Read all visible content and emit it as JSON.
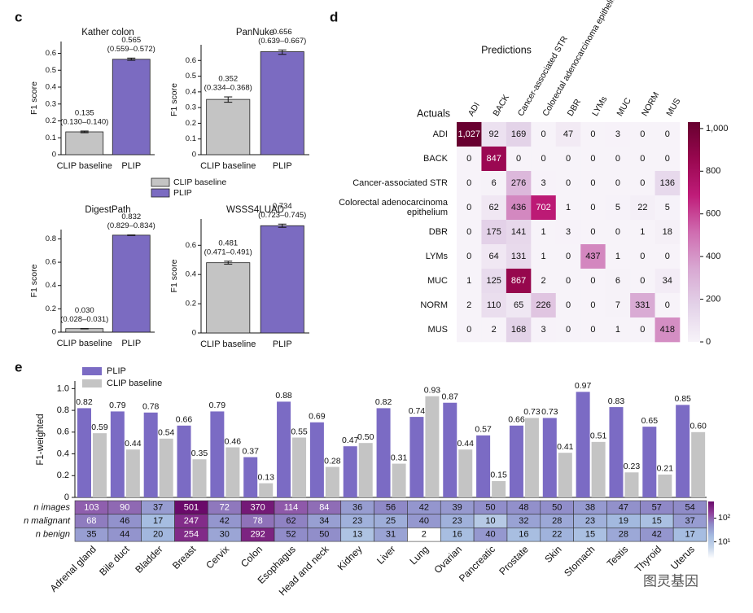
{
  "panel_labels": [
    "c",
    "d",
    "e"
  ],
  "watermark": "图灵基因",
  "chart_data": [
    {
      "type": "bar",
      "title": "Kather colon",
      "ylabel": "F1 score",
      "categories": [
        "CLIP baseline",
        "PLIP"
      ],
      "colors": [
        "#c4c4c4",
        "#7b6bc1"
      ],
      "values": [
        0.135,
        0.565
      ],
      "value_labels": [
        "0.135",
        "0.565"
      ],
      "ci": [
        [
          0.13,
          0.14
        ],
        [
          0.559,
          0.572
        ]
      ],
      "ci_labels": [
        "(0.130–0.140)",
        "(0.559–0.572)"
      ],
      "ylim": [
        0,
        0.67
      ],
      "yticks": [
        0,
        0.1,
        0.2,
        0.3,
        0.4,
        0.5,
        0.6
      ],
      "legend": [
        {
          "name": "CLIP baseline",
          "color": "#c4c4c4"
        },
        {
          "name": "PLIP",
          "color": "#7b6bc1"
        }
      ]
    },
    {
      "type": "bar",
      "title": "PanNuke",
      "ylabel": "F1 score",
      "categories": [
        "CLIP baseline",
        "PLIP"
      ],
      "colors": [
        "#c4c4c4",
        "#7b6bc1"
      ],
      "values": [
        0.352,
        0.656
      ],
      "value_labels": [
        "0.352",
        "0.656"
      ],
      "ci": [
        [
          0.334,
          0.368
        ],
        [
          0.639,
          0.667
        ]
      ],
      "ci_labels": [
        "(0.334–0.368)",
        "(0.639–0.667)"
      ],
      "ylim": [
        0,
        0.7
      ],
      "yticks": [
        0,
        0.1,
        0.2,
        0.3,
        0.4,
        0.5,
        0.6
      ]
    },
    {
      "type": "bar",
      "title": "DigestPath",
      "ylabel": "F1 score",
      "categories": [
        "CLIP baseline",
        "PLIP"
      ],
      "colors": [
        "#c4c4c4",
        "#7b6bc1"
      ],
      "values": [
        0.03,
        0.832
      ],
      "value_labels": [
        "0.030",
        "0.832"
      ],
      "ci": [
        [
          0.028,
          0.031
        ],
        [
          0.829,
          0.834
        ]
      ],
      "ci_labels": [
        "(0.028–0.031)",
        "(0.829–0.834)"
      ],
      "ylim": [
        0,
        0.88
      ],
      "yticks": [
        0,
        0.2,
        0.4,
        0.6,
        0.8
      ]
    },
    {
      "type": "bar",
      "title": "WSSS4LUAD",
      "ylabel": "F1 score",
      "categories": [
        "CLIP baseline",
        "PLIP"
      ],
      "colors": [
        "#c4c4c4",
        "#7b6bc1"
      ],
      "values": [
        0.481,
        0.734
      ],
      "value_labels": [
        "0.481",
        "0.734"
      ],
      "ci": [
        [
          0.471,
          0.491
        ],
        [
          0.723,
          0.745
        ]
      ],
      "ci_labels": [
        "(0.471–0.491)",
        "(0.723–0.745)"
      ],
      "ylim": [
        0,
        0.78
      ],
      "yticks": [
        0,
        0.2,
        0.4,
        0.6
      ]
    },
    {
      "type": "heatmap",
      "xlabel": "Predictions",
      "ylabel": "Actuals",
      "x_categories": [
        "ADI",
        "BACK",
        "Cancer-associated STR",
        "Colorectal adenocarcinoma epithelium",
        "DBR",
        "LYMs",
        "MUC",
        "NORM",
        "MUS"
      ],
      "y_categories": [
        "ADI",
        "BACK",
        "Cancer-associated STR",
        "Colorectal adenocarcinoma epithelium",
        "DBR",
        "LYMs",
        "MUC",
        "NORM",
        "MUS"
      ],
      "values": [
        [
          1027,
          92,
          169,
          0,
          47,
          0,
          3,
          0,
          0
        ],
        [
          0,
          847,
          0,
          0,
          0,
          0,
          0,
          0,
          0
        ],
        [
          0,
          6,
          276,
          3,
          0,
          0,
          0,
          0,
          136
        ],
        [
          0,
          62,
          436,
          702,
          1,
          0,
          5,
          22,
          5
        ],
        [
          0,
          175,
          141,
          1,
          3,
          0,
          0,
          1,
          18
        ],
        [
          0,
          64,
          131,
          1,
          0,
          437,
          1,
          0,
          0
        ],
        [
          1,
          125,
          867,
          2,
          0,
          0,
          6,
          0,
          34
        ],
        [
          2,
          110,
          65,
          226,
          0,
          0,
          7,
          331,
          0
        ],
        [
          0,
          2,
          168,
          3,
          0,
          0,
          1,
          0,
          418
        ]
      ],
      "value_labels": [
        [
          "1,027",
          "92",
          "169",
          "0",
          "47",
          "0",
          "3",
          "0",
          "0"
        ],
        [
          "0",
          "847",
          "0",
          "0",
          "0",
          "0",
          "0",
          "0",
          "0"
        ],
        [
          "0",
          "6",
          "276",
          "3",
          "0",
          "0",
          "0",
          "0",
          "136"
        ],
        [
          "0",
          "62",
          "436",
          "702",
          "1",
          "0",
          "5",
          "22",
          "5"
        ],
        [
          "0",
          "175",
          "141",
          "1",
          "3",
          "0",
          "0",
          "1",
          "18"
        ],
        [
          "0",
          "64",
          "131",
          "1",
          "0",
          "437",
          "1",
          "0",
          "0"
        ],
        [
          "1",
          "125",
          "867",
          "2",
          "0",
          "0",
          "6",
          "0",
          "34"
        ],
        [
          "2",
          "110",
          "65",
          "226",
          "0",
          "0",
          "7",
          "331",
          "0"
        ],
        [
          "0",
          "2",
          "168",
          "3",
          "0",
          "0",
          "1",
          "0",
          "418"
        ]
      ],
      "zlim": [
        0,
        1030
      ],
      "zticks": [
        0,
        200,
        400,
        600,
        800,
        {
          "value": 1000,
          "label": "1,000"
        }
      ],
      "colormap": [
        "#f7f3f9",
        "#e3d2e8",
        "#d8a8d2",
        "#cf6cb0",
        "#bf1c79",
        "#98074f",
        "#67002f"
      ]
    },
    {
      "type": "bar",
      "ylabel": "F1-weighted",
      "categories": [
        "Adrenal gland",
        "Bile duct",
        "Bladder",
        "Breast",
        "Cervix",
        "Colon",
        "Esophagus",
        "Head and neck",
        "Kidney",
        "Liver",
        "Lung",
        "Ovarian",
        "Pancreatic",
        "Prostate",
        "Skin",
        "Stomach",
        "Testis",
        "Thyroid",
        "Uterus"
      ],
      "series": [
        {
          "name": "PLIP",
          "color": "#7b6bc4",
          "values": [
            0.82,
            0.79,
            0.78,
            0.66,
            0.79,
            0.37,
            0.88,
            0.69,
            0.47,
            0.82,
            0.74,
            0.87,
            0.57,
            0.66,
            0.73,
            0.97,
            0.83,
            0.65,
            0.85
          ],
          "value_labels": [
            "0.82",
            "0.79",
            "0.78",
            "0.66",
            "0.79",
            "0.37",
            "0.88",
            "0.69",
            "0.47",
            "0.82",
            "0.74",
            "0.87",
            "0.57",
            "0.66",
            "0.73",
            "0.97",
            "0.83",
            "0.65",
            "0.85"
          ]
        },
        {
          "name": "CLIP baseline",
          "color": "#c4c4c4",
          "values": [
            0.59,
            0.44,
            0.54,
            0.35,
            0.46,
            0.13,
            0.55,
            0.28,
            0.5,
            0.31,
            0.93,
            0.44,
            0.15,
            0.73,
            0.41,
            0.51,
            0.23,
            0.21,
            0.6
          ],
          "value_labels": [
            "0.59",
            "0.44",
            "0.54",
            "0.35",
            "0.46",
            "0.13",
            "0.55",
            "0.28",
            "0.50",
            "0.31",
            "0.93",
            "0.44",
            "0.15",
            "0.73",
            "0.41",
            "0.51",
            "0.23",
            "0.21",
            "0.60"
          ]
        }
      ],
      "ylim": [
        0,
        1.07
      ],
      "yticks": [
        0,
        0.2,
        0.4,
        0.6,
        0.8,
        {
          "value": 1,
          "label": "1.0"
        }
      ],
      "table": {
        "rows": [
          "n images",
          "n malignant",
          "n benign"
        ],
        "values": [
          [
            103,
            90,
            37,
            501,
            72,
            370,
            114,
            84,
            36,
            56,
            42,
            39,
            50,
            48,
            50,
            38,
            47,
            57,
            54
          ],
          [
            68,
            46,
            17,
            247,
            42,
            78,
            62,
            34,
            23,
            25,
            40,
            23,
            10,
            32,
            28,
            23,
            19,
            15,
            37
          ],
          [
            35,
            44,
            20,
            254,
            30,
            292,
            52,
            50,
            13,
            31,
            2,
            16,
            40,
            16,
            22,
            15,
            28,
            42,
            17
          ]
        ],
        "log": true,
        "zlim": [
          2,
          501
        ],
        "zticks": [
          {
            "value": 10,
            "label": "10¹"
          },
          {
            "value": 100,
            "label": "10²"
          }
        ],
        "colormap": [
          "#ffffff",
          "#c5d5ea",
          "#a4bbe0",
          "#8f8ac8",
          "#8f3f9a",
          "#6a0a6a"
        ]
      }
    }
  ]
}
